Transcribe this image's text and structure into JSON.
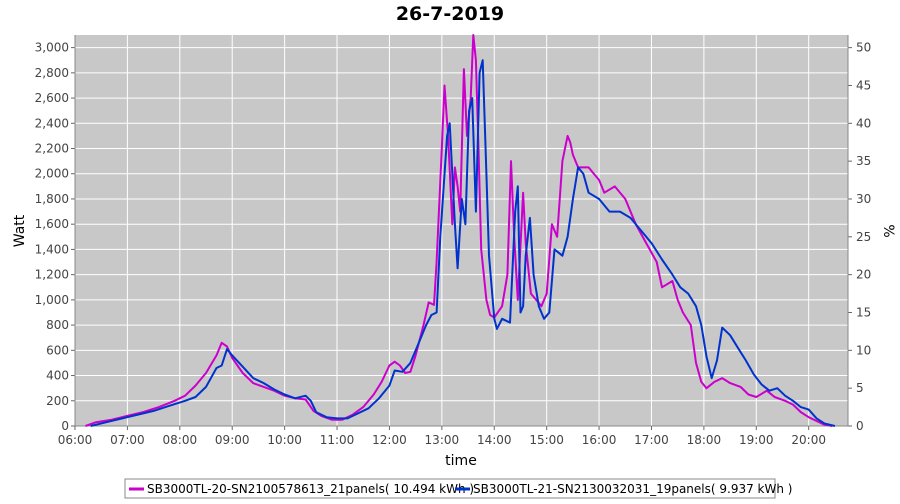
{
  "chart_data": {
    "type": "line",
    "title": "26-7-2019",
    "xlabel": "time",
    "ylabel": "Watt",
    "y2label": "%",
    "xlim": [
      6.0,
      20.75
    ],
    "ylim": [
      0,
      3100
    ],
    "y2lim": [
      0,
      51.67
    ],
    "x_ticks": [
      "06:00",
      "07:00",
      "08:00",
      "09:00",
      "10:00",
      "11:00",
      "12:00",
      "13:00",
      "14:00",
      "15:00",
      "16:00",
      "17:00",
      "18:00",
      "19:00",
      "20:00"
    ],
    "y_ticks": [
      "0",
      "200",
      "400",
      "600",
      "800",
      "1,000",
      "1,200",
      "1,400",
      "1,600",
      "1,800",
      "2,000",
      "2,200",
      "2,400",
      "2,600",
      "2,800",
      "3,000"
    ],
    "y2_ticks": [
      "0",
      "5",
      "10",
      "15",
      "20",
      "25",
      "30",
      "35",
      "40",
      "45",
      "50"
    ],
    "grid": true,
    "legend_position": "bottom",
    "series": [
      {
        "name": "SB3000TL-20-SN2100578613_21panels( 10.494 kWh )",
        "color": "#cc00cc",
        "points": [
          [
            6.2,
            0
          ],
          [
            6.4,
            30
          ],
          [
            6.7,
            50
          ],
          [
            7.0,
            80
          ],
          [
            7.3,
            110
          ],
          [
            7.6,
            150
          ],
          [
            7.9,
            200
          ],
          [
            8.1,
            240
          ],
          [
            8.3,
            320
          ],
          [
            8.5,
            420
          ],
          [
            8.7,
            560
          ],
          [
            8.8,
            660
          ],
          [
            8.9,
            630
          ],
          [
            9.0,
            540
          ],
          [
            9.2,
            420
          ],
          [
            9.4,
            340
          ],
          [
            9.6,
            310
          ],
          [
            9.8,
            280
          ],
          [
            10.0,
            240
          ],
          [
            10.2,
            220
          ],
          [
            10.4,
            210
          ],
          [
            10.55,
            120
          ],
          [
            10.7,
            80
          ],
          [
            10.9,
            50
          ],
          [
            11.1,
            50
          ],
          [
            11.3,
            90
          ],
          [
            11.5,
            150
          ],
          [
            11.7,
            250
          ],
          [
            11.85,
            350
          ],
          [
            12.0,
            480
          ],
          [
            12.1,
            510
          ],
          [
            12.2,
            480
          ],
          [
            12.3,
            420
          ],
          [
            12.4,
            430
          ],
          [
            12.5,
            560
          ],
          [
            12.65,
            800
          ],
          [
            12.75,
            980
          ],
          [
            12.85,
            960
          ],
          [
            12.9,
            1300
          ],
          [
            13.0,
            2200
          ],
          [
            13.05,
            2700
          ],
          [
            13.12,
            2300
          ],
          [
            13.2,
            1600
          ],
          [
            13.25,
            2050
          ],
          [
            13.3,
            1900
          ],
          [
            13.35,
            1700
          ],
          [
            13.42,
            2830
          ],
          [
            13.48,
            2300
          ],
          [
            13.55,
            2600
          ],
          [
            13.6,
            3100
          ],
          [
            13.65,
            2900
          ],
          [
            13.7,
            2200
          ],
          [
            13.75,
            1400
          ],
          [
            13.85,
            1000
          ],
          [
            13.92,
            880
          ],
          [
            14.0,
            860
          ],
          [
            14.15,
            950
          ],
          [
            14.25,
            1200
          ],
          [
            14.32,
            2100
          ],
          [
            14.38,
            1500
          ],
          [
            14.45,
            1000
          ],
          [
            14.55,
            1850
          ],
          [
            14.6,
            1450
          ],
          [
            14.7,
            1050
          ],
          [
            14.8,
            1000
          ],
          [
            14.9,
            950
          ],
          [
            15.0,
            1050
          ],
          [
            15.1,
            1600
          ],
          [
            15.2,
            1500
          ],
          [
            15.3,
            2100
          ],
          [
            15.4,
            2300
          ],
          [
            15.45,
            2250
          ],
          [
            15.5,
            2150
          ],
          [
            15.6,
            2050
          ],
          [
            15.8,
            2050
          ],
          [
            15.9,
            2000
          ],
          [
            16.0,
            1950
          ],
          [
            16.1,
            1850
          ],
          [
            16.3,
            1900
          ],
          [
            16.5,
            1800
          ],
          [
            16.7,
            1600
          ],
          [
            16.9,
            1450
          ],
          [
            17.1,
            1300
          ],
          [
            17.2,
            1100
          ],
          [
            17.4,
            1150
          ],
          [
            17.5,
            1000
          ],
          [
            17.6,
            900
          ],
          [
            17.75,
            800
          ],
          [
            17.85,
            500
          ],
          [
            17.95,
            350
          ],
          [
            18.05,
            300
          ],
          [
            18.2,
            350
          ],
          [
            18.35,
            380
          ],
          [
            18.5,
            340
          ],
          [
            18.7,
            310
          ],
          [
            18.85,
            250
          ],
          [
            19.0,
            230
          ],
          [
            19.2,
            280
          ],
          [
            19.35,
            230
          ],
          [
            19.55,
            200
          ],
          [
            19.7,
            170
          ],
          [
            19.85,
            110
          ],
          [
            20.0,
            70
          ],
          [
            20.15,
            40
          ],
          [
            20.3,
            10
          ],
          [
            20.45,
            0
          ]
        ]
      },
      {
        "name": "SB3000TL-21-SN2130032031_19panels( 9.937 kWh )",
        "color": "#0033cc",
        "points": [
          [
            6.3,
            0
          ],
          [
            6.6,
            30
          ],
          [
            6.9,
            60
          ],
          [
            7.2,
            90
          ],
          [
            7.5,
            120
          ],
          [
            7.8,
            160
          ],
          [
            8.1,
            200
          ],
          [
            8.3,
            230
          ],
          [
            8.5,
            310
          ],
          [
            8.7,
            460
          ],
          [
            8.8,
            480
          ],
          [
            8.9,
            610
          ],
          [
            9.0,
            560
          ],
          [
            9.2,
            470
          ],
          [
            9.4,
            380
          ],
          [
            9.6,
            340
          ],
          [
            9.8,
            290
          ],
          [
            10.0,
            250
          ],
          [
            10.2,
            220
          ],
          [
            10.4,
            240
          ],
          [
            10.5,
            200
          ],
          [
            10.6,
            110
          ],
          [
            10.8,
            70
          ],
          [
            11.0,
            60
          ],
          [
            11.2,
            60
          ],
          [
            11.4,
            100
          ],
          [
            11.6,
            140
          ],
          [
            11.8,
            220
          ],
          [
            12.0,
            320
          ],
          [
            12.1,
            440
          ],
          [
            12.25,
            430
          ],
          [
            12.4,
            500
          ],
          [
            12.55,
            650
          ],
          [
            12.7,
            800
          ],
          [
            12.8,
            880
          ],
          [
            12.9,
            900
          ],
          [
            12.97,
            1500
          ],
          [
            13.1,
            2300
          ],
          [
            13.15,
            2400
          ],
          [
            13.25,
            1600
          ],
          [
            13.3,
            1250
          ],
          [
            13.38,
            1800
          ],
          [
            13.45,
            1600
          ],
          [
            13.52,
            2500
          ],
          [
            13.58,
            2600
          ],
          [
            13.65,
            1700
          ],
          [
            13.72,
            2800
          ],
          [
            13.78,
            2900
          ],
          [
            13.85,
            2000
          ],
          [
            13.9,
            1350
          ],
          [
            14.0,
            850
          ],
          [
            14.05,
            770
          ],
          [
            14.15,
            850
          ],
          [
            14.3,
            820
          ],
          [
            14.4,
            1700
          ],
          [
            14.45,
            1900
          ],
          [
            14.5,
            900
          ],
          [
            14.55,
            950
          ],
          [
            14.6,
            1350
          ],
          [
            14.68,
            1650
          ],
          [
            14.75,
            1200
          ],
          [
            14.85,
            950
          ],
          [
            14.95,
            850
          ],
          [
            15.05,
            900
          ],
          [
            15.15,
            1400
          ],
          [
            15.3,
            1350
          ],
          [
            15.4,
            1500
          ],
          [
            15.5,
            1800
          ],
          [
            15.6,
            2050
          ],
          [
            15.7,
            2000
          ],
          [
            15.8,
            1850
          ],
          [
            16.0,
            1800
          ],
          [
            16.2,
            1700
          ],
          [
            16.4,
            1700
          ],
          [
            16.6,
            1650
          ],
          [
            16.8,
            1550
          ],
          [
            17.0,
            1450
          ],
          [
            17.2,
            1320
          ],
          [
            17.4,
            1200
          ],
          [
            17.55,
            1100
          ],
          [
            17.7,
            1050
          ],
          [
            17.85,
            950
          ],
          [
            17.95,
            800
          ],
          [
            18.05,
            550
          ],
          [
            18.15,
            380
          ],
          [
            18.25,
            520
          ],
          [
            18.35,
            780
          ],
          [
            18.5,
            720
          ],
          [
            18.65,
            620
          ],
          [
            18.8,
            520
          ],
          [
            18.95,
            410
          ],
          [
            19.1,
            330
          ],
          [
            19.25,
            280
          ],
          [
            19.4,
            300
          ],
          [
            19.55,
            240
          ],
          [
            19.7,
            200
          ],
          [
            19.85,
            150
          ],
          [
            20.0,
            130
          ],
          [
            20.15,
            60
          ],
          [
            20.3,
            20
          ],
          [
            20.5,
            0
          ]
        ]
      }
    ]
  }
}
